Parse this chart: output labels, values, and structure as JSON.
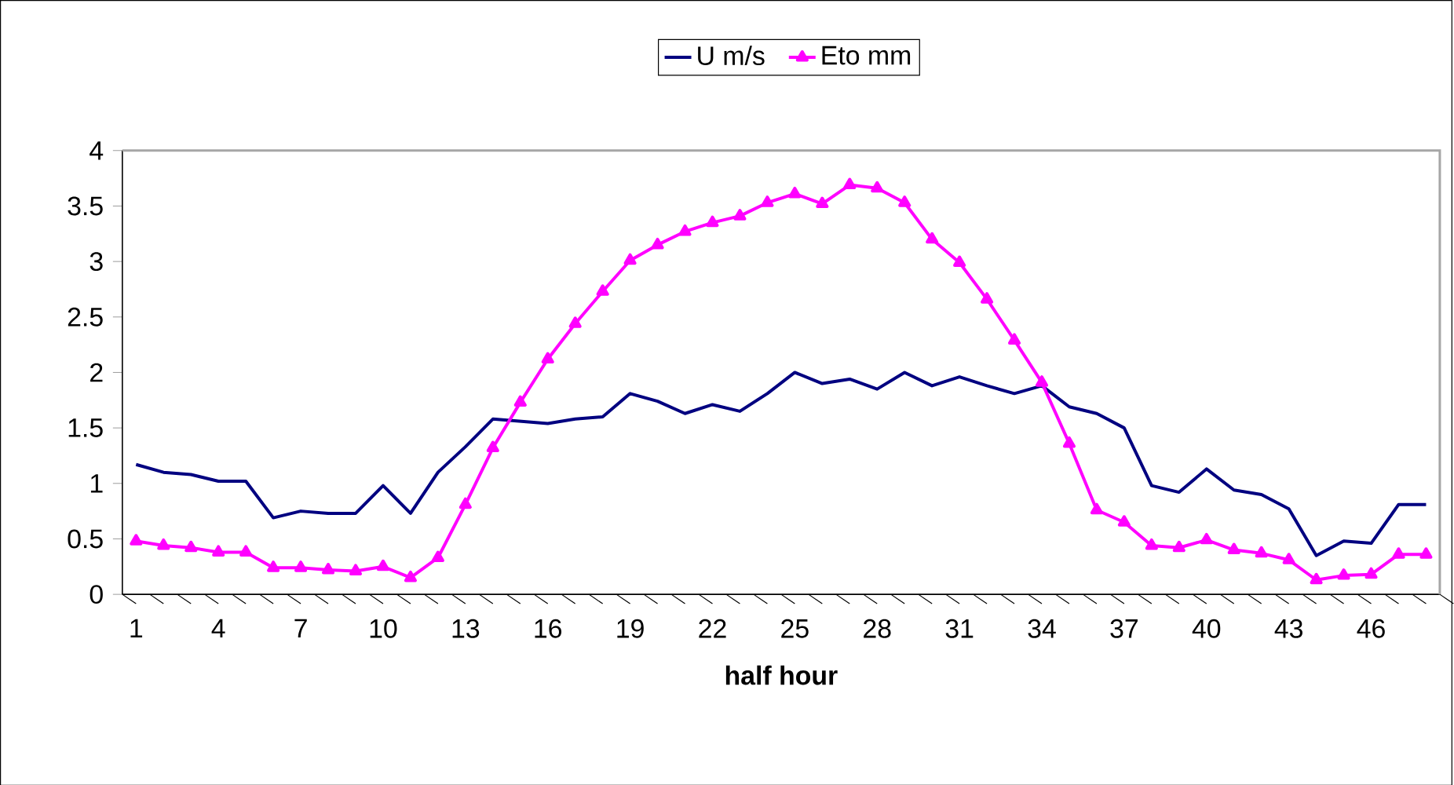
{
  "chart_data": {
    "type": "line",
    "xlabel": "half hour",
    "categories": [
      "1",
      null,
      null,
      "4",
      null,
      null,
      "7",
      null,
      null,
      "10",
      null,
      null,
      "13",
      null,
      null,
      "16",
      null,
      null,
      "19",
      null,
      null,
      "22",
      null,
      null,
      "25",
      null,
      null,
      "28",
      null,
      null,
      "31",
      null,
      null,
      "34",
      null,
      null,
      "37",
      null,
      null,
      "40",
      null,
      null,
      "43",
      null,
      null,
      "46",
      null,
      null
    ],
    "series": [
      {
        "name": "U m/s",
        "color": "#000080",
        "marker": "none",
        "values": [
          1.17,
          1.1,
          1.08,
          1.02,
          1.02,
          0.69,
          0.75,
          0.73,
          0.73,
          0.98,
          0.73,
          1.1,
          1.33,
          1.58,
          1.56,
          1.54,
          1.58,
          1.6,
          1.81,
          1.74,
          1.63,
          1.71,
          1.65,
          1.81,
          2.0,
          1.9,
          1.94,
          1.85,
          2.0,
          1.88,
          1.96,
          1.88,
          1.81,
          1.88,
          1.69,
          1.63,
          1.5,
          0.98,
          0.92,
          1.13,
          0.94,
          0.9,
          0.77,
          0.35,
          0.48,
          0.46,
          0.81,
          0.81
        ]
      },
      {
        "name": "Eto  mm",
        "color": "#ff00ff",
        "marker": "triangle",
        "values": [
          0.48,
          0.44,
          0.42,
          0.38,
          0.38,
          0.24,
          0.24,
          0.22,
          0.21,
          0.25,
          0.15,
          0.33,
          0.81,
          1.32,
          1.73,
          2.12,
          2.44,
          2.73,
          3.01,
          3.15,
          3.27,
          3.35,
          3.41,
          3.53,
          3.61,
          3.52,
          3.69,
          3.66,
          3.53,
          3.2,
          2.99,
          2.66,
          2.29,
          1.91,
          1.36,
          0.76,
          0.65,
          0.44,
          0.42,
          0.49,
          0.4,
          0.37,
          0.31,
          0.13,
          0.17,
          0.18,
          0.36,
          0.36
        ]
      }
    ],
    "ylim": [
      0,
      4
    ],
    "yticks": [
      0,
      0.5,
      1,
      1.5,
      2,
      2.5,
      3,
      3.5,
      4
    ],
    "grid": false,
    "legend": "top"
  }
}
